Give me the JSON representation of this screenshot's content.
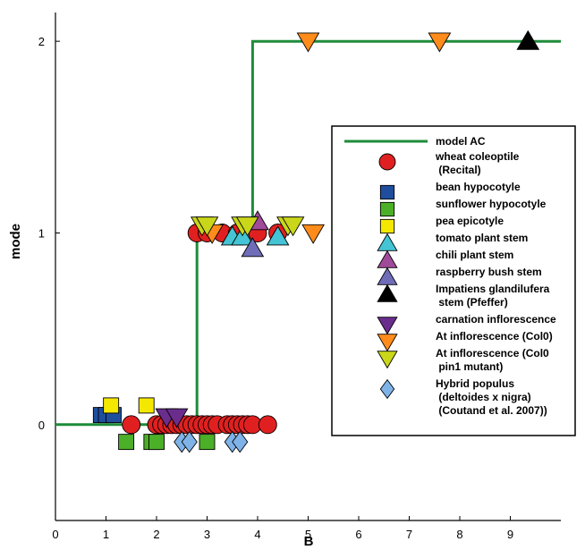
{
  "chart_data": {
    "type": "scatter",
    "title": "",
    "xlabel": "B",
    "ylabel": "mode",
    "xlim": [
      0,
      10
    ],
    "ylim": [
      -0.5,
      2.15
    ],
    "x_ticks": [
      "0",
      "1",
      "2",
      "3",
      "4",
      "5",
      "6",
      "7",
      "8",
      "9"
    ],
    "y_ticks": [
      "0",
      "1",
      "2"
    ],
    "grid": false,
    "legend_position": "right",
    "model_line": {
      "name": "model AC",
      "color": "#1e8c3a",
      "points": [
        [
          0,
          0
        ],
        [
          2.8,
          0
        ],
        [
          2.8,
          1
        ],
        [
          3.9,
          1
        ],
        [
          3.9,
          2
        ],
        [
          10,
          2
        ]
      ]
    },
    "series": [
      {
        "name": "wheat coleoptile (Recital)",
        "label_lines": [
          "wheat coleoptile",
          " (Recital)"
        ],
        "marker": "circle",
        "color": "#e02020",
        "points": [
          [
            1.5,
            0
          ],
          [
            2.0,
            0
          ],
          [
            2.1,
            0
          ],
          [
            2.2,
            0
          ],
          [
            2.3,
            0
          ],
          [
            2.4,
            0
          ],
          [
            2.5,
            0
          ],
          [
            2.6,
            0
          ],
          [
            2.7,
            0
          ],
          [
            2.8,
            0
          ],
          [
            2.9,
            0
          ],
          [
            3.0,
            0
          ],
          [
            3.1,
            0
          ],
          [
            3.2,
            0
          ],
          [
            3.4,
            0
          ],
          [
            3.5,
            0
          ],
          [
            3.6,
            0
          ],
          [
            3.7,
            0
          ],
          [
            3.8,
            0
          ],
          [
            3.9,
            0
          ],
          [
            4.2,
            0
          ],
          [
            2.8,
            1
          ],
          [
            3.0,
            1
          ],
          [
            3.3,
            1
          ],
          [
            3.6,
            1
          ],
          [
            4.0,
            1
          ],
          [
            4.4,
            1
          ]
        ]
      },
      {
        "name": "bean hypocotyle",
        "label_lines": [
          "bean hypocotyle"
        ],
        "marker": "square",
        "color": "#1f4e9e",
        "points": [
          [
            0.9,
            0.05
          ],
          [
            1.0,
            0.05
          ],
          [
            1.15,
            0.05
          ]
        ]
      },
      {
        "name": "sunflower hypocotyle",
        "label_lines": [
          "sunflower hypocotyle"
        ],
        "marker": "square",
        "color": "#4caf28",
        "points": [
          [
            1.4,
            -0.09
          ],
          [
            1.9,
            -0.09
          ],
          [
            2.0,
            -0.09
          ],
          [
            3.0,
            -0.09
          ]
        ]
      },
      {
        "name": "pea epicotyle",
        "label_lines": [
          "pea epicotyle"
        ],
        "marker": "square",
        "color": "#f5e800",
        "points": [
          [
            1.1,
            0.1
          ],
          [
            1.8,
            0.1
          ]
        ]
      },
      {
        "name": "tomato plant stem",
        "label_lines": [
          "tomato plant stem"
        ],
        "marker": "triangle-up",
        "color": "#44c4d4",
        "points": [
          [
            3.5,
            0.98
          ],
          [
            3.7,
            0.98
          ],
          [
            4.4,
            0.98
          ]
        ]
      },
      {
        "name": "chili plant stem",
        "label_lines": [
          "chili plant stem"
        ],
        "marker": "triangle-up",
        "color": "#a04a9a",
        "points": [
          [
            4.0,
            1.06
          ]
        ]
      },
      {
        "name": "raspberry bush stem",
        "label_lines": [
          "raspberry bush stem"
        ],
        "marker": "triangle-up",
        "color": "#6f6cb8",
        "points": [
          [
            3.9,
            0.92
          ]
        ]
      },
      {
        "name": "Impatiens glandilufera stem (Pfeffer)",
        "label_lines": [
          "Impatiens glandilufera",
          " stem (Pfeffer)"
        ],
        "marker": "triangle-up",
        "color": "#000000",
        "points": [
          [
            9.35,
            2.0
          ]
        ]
      },
      {
        "name": "carnation inflorescence",
        "label_lines": [
          "carnation inflorescence"
        ],
        "marker": "triangle-down",
        "color": "#6a2d8c",
        "points": [
          [
            2.2,
            0.04
          ],
          [
            2.4,
            0.04
          ]
        ]
      },
      {
        "name": "At inflorescence (Col0)",
        "label_lines": [
          "At inflorescence (Col0)"
        ],
        "marker": "triangle-down",
        "color": "#ff8c1a",
        "points": [
          [
            3.1,
            1.0
          ],
          [
            5.1,
            1.0
          ],
          [
            5.0,
            2.0
          ],
          [
            7.6,
            2.0
          ]
        ]
      },
      {
        "name": "At inflorescence (Col0 pin1 mutant)",
        "label_lines": [
          "At inflorescence (Col0",
          " pin1 mutant)"
        ],
        "marker": "triangle-down",
        "color": "#c9d61a",
        "points": [
          [
            2.9,
            1.04
          ],
          [
            3.0,
            1.04
          ],
          [
            3.7,
            1.04
          ],
          [
            3.8,
            1.04
          ],
          [
            4.6,
            1.04
          ],
          [
            4.7,
            1.04
          ]
        ]
      },
      {
        "name": "Hybrid populus (deltoides x nigra) (Coutand et al. 2007))",
        "label_lines": [
          "Hybrid populus",
          " (deltoides x nigra)",
          " (Coutand et al. 2007))"
        ],
        "marker": "diamond",
        "color": "#7fb3e8",
        "points": [
          [
            2.5,
            -0.09
          ],
          [
            2.65,
            -0.09
          ],
          [
            3.5,
            -0.09
          ],
          [
            3.65,
            -0.09
          ]
        ]
      }
    ]
  }
}
